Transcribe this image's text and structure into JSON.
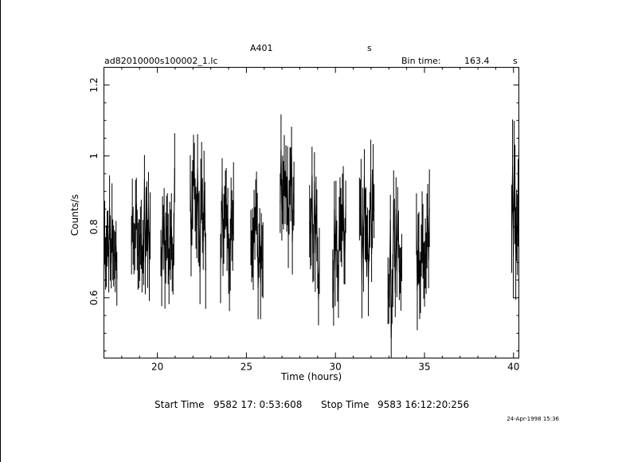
{
  "header": {
    "target": "A401",
    "mode": "s",
    "file": "ad82010000s100002_1.lc",
    "bin_label": "Bin time:",
    "bin_value": "163.4",
    "bin_unit": "s"
  },
  "footer": {
    "start_label": "Start Time",
    "start_value": "9582 17: 0:53:608",
    "stop_label": "Stop Time",
    "stop_value": "9583 16:12:20:256",
    "plot_date": "24-Apr-1998 15:36"
  },
  "chart_data": {
    "type": "line",
    "title": "A401",
    "xlabel": "Time (hours)",
    "ylabel": "Counts/s",
    "xlim": [
      17.0,
      40.3
    ],
    "ylim": [
      0.43,
      1.25
    ],
    "x_ticks": [
      20,
      25,
      30,
      35,
      40
    ],
    "x_tick_labels": [
      "20",
      "25",
      "30",
      "35",
      "40"
    ],
    "y_ticks": [
      0.6,
      0.8,
      1.0,
      1.2
    ],
    "y_tick_labels": [
      "0.6",
      "0.8",
      "1",
      "1.2"
    ],
    "grid": false,
    "legend": "none",
    "segments": [
      {
        "start": 17.0,
        "end": 17.75,
        "mean": 0.76,
        "err": 0.08,
        "seed": 11
      },
      {
        "start": 18.55,
        "end": 19.6,
        "mean": 0.8,
        "err": 0.08,
        "seed": 23
      },
      {
        "start": 20.2,
        "end": 21.0,
        "mean": 0.8,
        "err": 0.08,
        "seed": 37
      },
      {
        "start": 21.85,
        "end": 22.75,
        "mean": 0.82,
        "err": 0.09,
        "seed": 41
      },
      {
        "start": 23.55,
        "end": 24.3,
        "mean": 0.85,
        "err": 0.09,
        "seed": 53
      },
      {
        "start": 25.25,
        "end": 25.95,
        "mean": 0.8,
        "err": 0.09,
        "seed": 67
      },
      {
        "start": 26.9,
        "end": 27.7,
        "mean": 0.88,
        "err": 0.09,
        "seed": 71
      },
      {
        "start": 28.55,
        "end": 29.1,
        "mean": 0.78,
        "err": 0.09,
        "seed": 83
      },
      {
        "start": 29.85,
        "end": 30.6,
        "mean": 0.8,
        "err": 0.09,
        "seed": 97
      },
      {
        "start": 31.35,
        "end": 32.2,
        "mean": 0.82,
        "err": 0.09,
        "seed": 101
      },
      {
        "start": 32.95,
        "end": 33.75,
        "mean": 0.7,
        "err": 0.08,
        "seed": 113
      },
      {
        "start": 34.55,
        "end": 35.3,
        "mean": 0.75,
        "err": 0.09,
        "seed": 127
      },
      {
        "start": 39.9,
        "end": 40.3,
        "mean": 0.88,
        "err": 0.12,
        "seed": 131
      }
    ]
  }
}
